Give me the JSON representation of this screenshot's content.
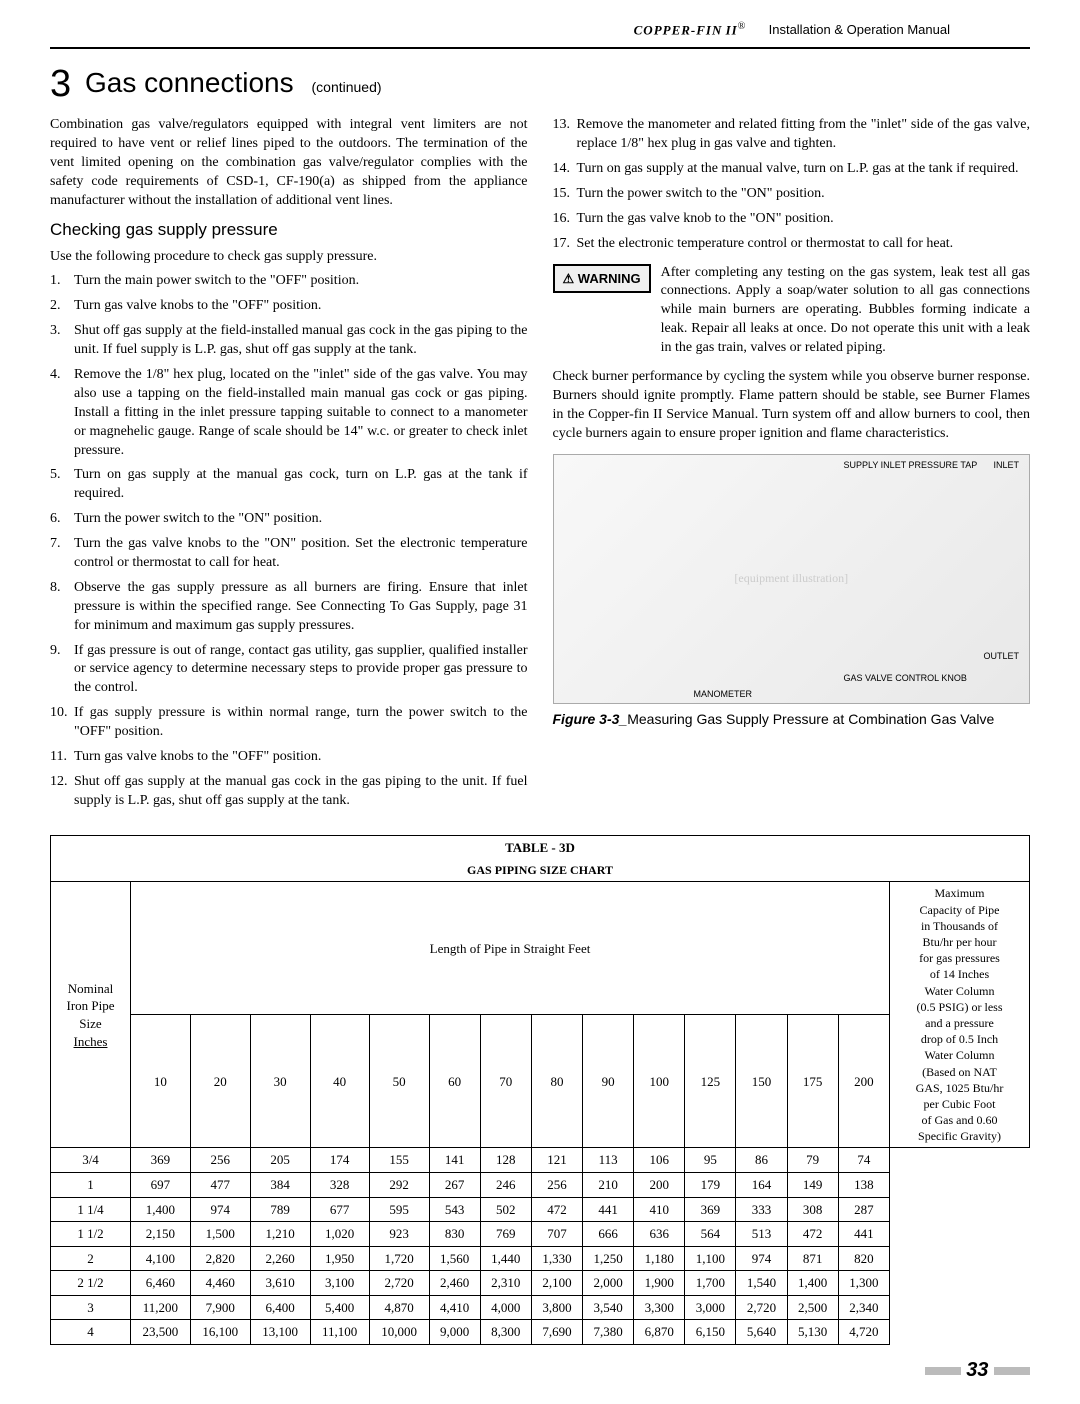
{
  "header": {
    "brand": "COPPER-FIN",
    "brand_suffix": "II",
    "brand_tm": "®",
    "manual_title": "Installation & Operation Manual"
  },
  "section": {
    "number": "3",
    "title": "Gas connections",
    "continued": "(continued)"
  },
  "left": {
    "intro": "Combination gas valve/regulators equipped with integral vent limiters are not required to have vent or relief lines piped to the outdoors.  The termination of the vent limited opening on the combination gas valve/regulator complies with the safety code requirements of CSD-1, CF-190(a) as shipped from the appliance manufacturer without the installation of additional vent lines.",
    "subhead": "Checking gas supply pressure",
    "lead": "Use the following procedure to check gas supply pressure.",
    "steps": [
      "Turn the main power switch to the \"OFF\" position.",
      "Turn gas valve knobs to the \"OFF\" position.",
      "Shut off gas supply at the field-installed manual gas cock in the gas piping to the unit.  If fuel supply is L.P. gas, shut off gas supply at the tank.",
      "Remove the 1/8\" hex plug, located on the \"inlet\" side of the gas valve.  You may also use a tapping on the field-installed main manual gas cock or gas piping.  Install a fitting in the inlet pressure tapping suitable to connect to a manometer or magnehelic gauge.  Range of scale should be 14\" w.c. or greater to check inlet pressure.",
      "Turn on gas supply at the manual gas cock, turn on L.P. gas at the tank if required.",
      "Turn the power switch to the \"ON\" position.",
      "Turn the gas valve knobs to the \"ON\" position. Set the electronic temperature control or thermostat to call for heat.",
      "Observe the gas supply pressure as all burners are firing.  Ensure that inlet pressure is within the specified range.  See Connecting To Gas Supply, page 31 for minimum and maximum gas supply pressures.",
      "If gas pressure is out of range, contact gas utility, gas supplier, qualified installer or service agency to determine necessary steps to provide proper gas pressure to the control.",
      "If gas supply pressure is within normal range, turn the power switch to the \"OFF\" position.",
      "Turn gas valve knobs to the \"OFF\" position.",
      "Shut off gas supply at the manual gas cock in the gas piping to the unit. If fuel supply is L.P. gas, shut off gas supply at the tank."
    ]
  },
  "right": {
    "steps_cont": [
      "Remove the manometer and related fitting from the \"inlet\" side of the gas valve, replace 1/8\" hex plug in gas valve and tighten.",
      "Turn on gas supply at the manual valve, turn on L.P. gas at the tank if required.",
      "Turn the power switch to the \"ON\" position.",
      "Turn the gas valve knob to the \"ON\" position.",
      "Set the electronic temperature control or thermostat to call for heat."
    ],
    "warning_label": "⚠ WARNING",
    "warning_text": "After completing any testing on the gas system, leak test all gas connections. Apply a soap/water solution to all gas connections while main burners are operating. Bubbles forming indicate a leak. Repair all leaks at once. Do not operate this unit with a leak in the gas train, valves or related piping.",
    "burner_check": "Check burner performance by cycling the system while you observe burner response.  Burners should ignite promptly.  Flame pattern should be stable, see Burner Flames in the Copper-fin II Service Manual. Turn system off and allow burners to cool, then cycle burners again to ensure proper ignition and flame characteristics.",
    "fig_caption_b": "Figure 3-3_",
    "fig_caption": "Measuring Gas Supply Pressure at Combination Gas Valve",
    "fig_labels": {
      "supply": "SUPPLY INLET PRESSURE TAP",
      "inlet": "INLET",
      "gas_knob": "GAS VALVE CONTROL KNOB",
      "outlet": "OUTLET",
      "manometer": "MANOMETER"
    }
  },
  "table": {
    "title": "TABLE - 3D",
    "subtitle": "GAS PIPING SIZE CHART",
    "left_header": [
      "Nominal",
      "Iron Pipe",
      "Size",
      "Inches"
    ],
    "mid_header": "Length of Pipe in Straight Feet",
    "right_header": [
      "Maximum",
      "Capacity of Pipe",
      "in Thousands of",
      "Btu/hr per hour",
      "for gas pressures",
      "of 14 Inches",
      "Water Column",
      "(0.5 PSIG) or less",
      "and a pressure",
      "drop of 0.5 Inch",
      "Water Column",
      "(Based on NAT",
      "GAS, 1025 Btu/hr",
      "per Cubic Foot",
      "of Gas and 0.60",
      "Specific Gravity)"
    ],
    "lengths": [
      "10",
      "20",
      "30",
      "40",
      "50",
      "60",
      "70",
      "80",
      "90",
      "100",
      "125",
      "150",
      "175",
      "200"
    ],
    "rows": [
      {
        "size": "3/4",
        "vals": [
          "369",
          "256",
          "205",
          "174",
          "155",
          "141",
          "128",
          "121",
          "113",
          "106",
          "95",
          "86",
          "79",
          "74"
        ]
      },
      {
        "size": "1",
        "vals": [
          "697",
          "477",
          "384",
          "328",
          "292",
          "267",
          "246",
          "256",
          "210",
          "200",
          "179",
          "164",
          "149",
          "138"
        ]
      },
      {
        "size": "1 1/4",
        "vals": [
          "1,400",
          "974",
          "789",
          "677",
          "595",
          "543",
          "502",
          "472",
          "441",
          "410",
          "369",
          "333",
          "308",
          "287"
        ]
      },
      {
        "size": "1 1/2",
        "vals": [
          "2,150",
          "1,500",
          "1,210",
          "1,020",
          "923",
          "830",
          "769",
          "707",
          "666",
          "636",
          "564",
          "513",
          "472",
          "441"
        ]
      },
      {
        "size": "2",
        "vals": [
          "4,100",
          "2,820",
          "2,260",
          "1,950",
          "1,720",
          "1,560",
          "1,440",
          "1,330",
          "1,250",
          "1,180",
          "1,100",
          "974",
          "871",
          "820"
        ]
      },
      {
        "size": "2 1/2",
        "vals": [
          "6,460",
          "4,460",
          "3,610",
          "3,100",
          "2,720",
          "2,460",
          "2,310",
          "2,100",
          "2,000",
          "1,900",
          "1,700",
          "1,540",
          "1,400",
          "1,300"
        ]
      },
      {
        "size": "3",
        "vals": [
          "11,200",
          "7,900",
          "6,400",
          "5,400",
          "4,870",
          "4,410",
          "4,000",
          "3,800",
          "3,540",
          "3,300",
          "3,000",
          "2,720",
          "2,500",
          "2,340"
        ]
      },
      {
        "size": "4",
        "vals": [
          "23,500",
          "16,100",
          "13,100",
          "11,100",
          "10,000",
          "9,000",
          "8,300",
          "7,690",
          "7,380",
          "6,870",
          "6,150",
          "5,640",
          "5,130",
          "4,720"
        ]
      }
    ]
  },
  "page_number": "33"
}
